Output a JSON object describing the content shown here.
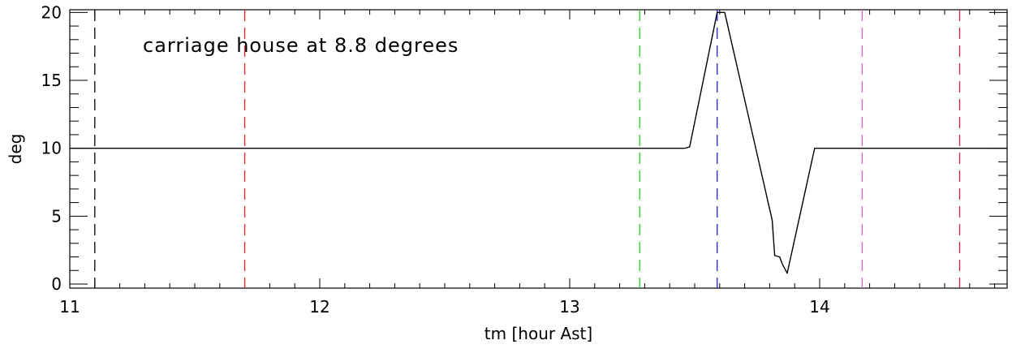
{
  "chart_data": {
    "type": "line",
    "title": "",
    "xlabel": "tm [hour Ast]",
    "ylabel": "deg",
    "xlim": [
      11.0,
      14.75
    ],
    "ylim": [
      -0.3,
      20.2
    ],
    "grid": false,
    "annotation": "carriage house at 8.8 degrees",
    "x_ticks": [
      {
        "value": 11,
        "label": "11"
      },
      {
        "value": 12,
        "label": "12"
      },
      {
        "value": 13,
        "label": "13"
      },
      {
        "value": 14,
        "label": "14"
      }
    ],
    "x_minor_step": 0.1,
    "y_ticks": [
      {
        "value": 0,
        "label": "0"
      },
      {
        "value": 5,
        "label": "5"
      },
      {
        "value": 10,
        "label": "10"
      },
      {
        "value": 15,
        "label": "15"
      },
      {
        "value": 20,
        "label": "20"
      }
    ],
    "y_minor_step": 1,
    "series": [
      {
        "color": "#000000",
        "x": [
          11.0,
          13.46,
          13.48,
          13.59,
          13.62,
          13.81,
          13.82,
          13.84,
          13.85,
          13.87,
          13.98,
          14.75
        ],
        "y": [
          10.0,
          10.0,
          10.1,
          20.0,
          20.0,
          4.7,
          2.1,
          2.0,
          1.5,
          0.8,
          10.0,
          10.0
        ]
      }
    ],
    "vlines": [
      {
        "x": 11.1,
        "color": "#000000"
      },
      {
        "x": 11.7,
        "color": "#ff2020"
      },
      {
        "x": 13.28,
        "color": "#22cc22"
      },
      {
        "x": 13.59,
        "color": "#2020ff"
      },
      {
        "x": 14.17,
        "color": "#dd66cc"
      },
      {
        "x": 14.56,
        "color": "#cc2244"
      }
    ]
  }
}
